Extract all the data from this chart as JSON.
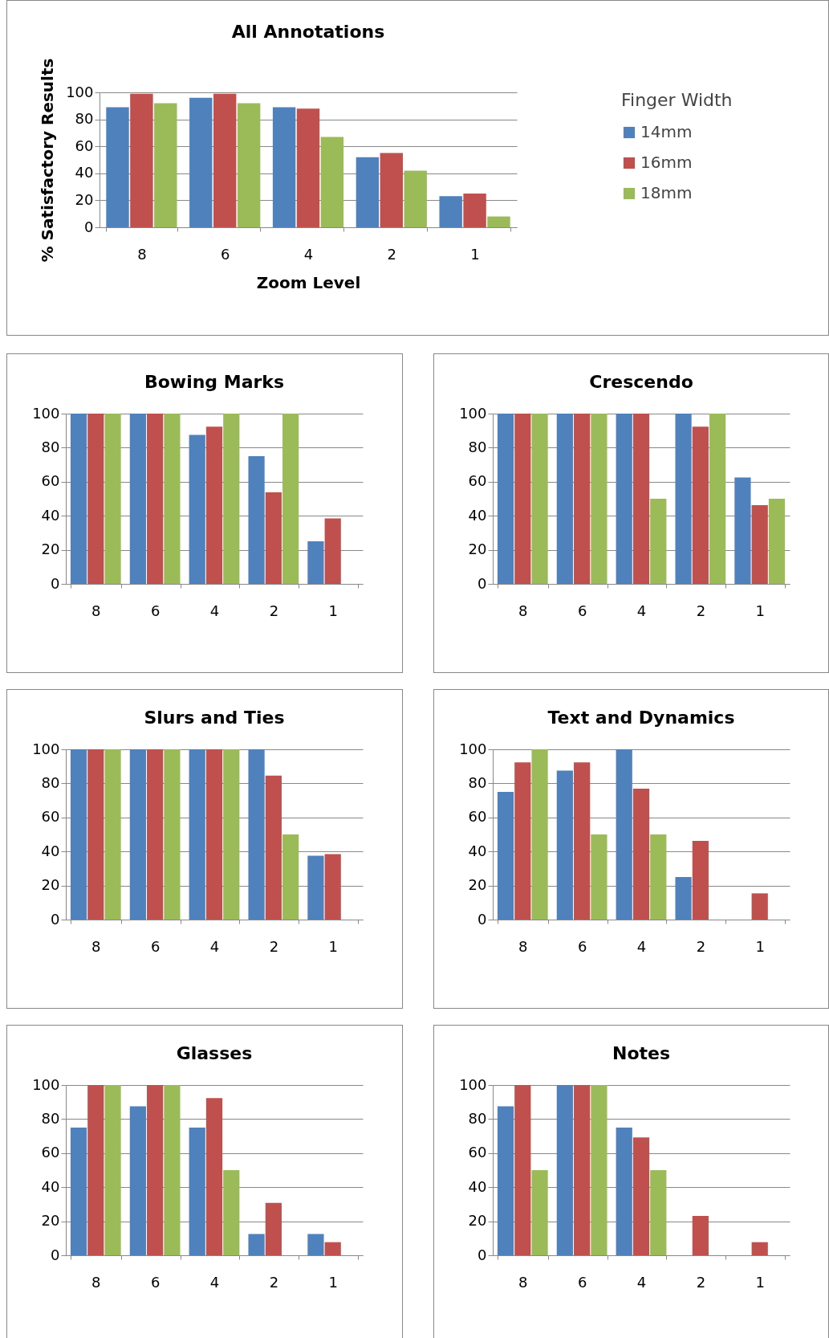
{
  "chart_data": [
    {
      "type": "bar",
      "title": "All Annotations",
      "xlabel": "Zoom Level",
      "ylabel": "% Satisfactory Results",
      "legend_title": "Finger Width",
      "legend": "right",
      "grid": "y",
      "categories": [
        "8",
        "6",
        "4",
        "2",
        "1"
      ],
      "ylim": [
        0,
        100
      ],
      "yticks": [
        0,
        20,
        40,
        60,
        80,
        100
      ],
      "series": [
        {
          "name": "14mm",
          "color": "#4f81bd",
          "values": [
            89,
            96,
            89,
            52,
            23
          ]
        },
        {
          "name": "16mm",
          "color": "#c0504d",
          "values": [
            99,
            99,
            88,
            55,
            25
          ]
        },
        {
          "name": "18mm",
          "color": "#9bbb59",
          "values": [
            92,
            92,
            67,
            42,
            8
          ]
        }
      ]
    },
    {
      "type": "bar",
      "title": "Bowing Marks",
      "grid": "y",
      "categories": [
        "8",
        "6",
        "4",
        "2",
        "1"
      ],
      "ylim": [
        0,
        100
      ],
      "yticks": [
        0,
        20,
        40,
        60,
        80,
        100
      ],
      "series": [
        {
          "color": "#4f81bd",
          "values": [
            100,
            100,
            87.5,
            75,
            25
          ]
        },
        {
          "color": "#c0504d",
          "values": [
            100,
            100,
            92.3,
            53.8,
            38.5
          ]
        },
        {
          "color": "#9bbb59",
          "values": [
            100,
            100,
            100,
            100,
            0
          ]
        }
      ]
    },
    {
      "type": "bar",
      "title": "Crescendo",
      "grid": "y",
      "categories": [
        "8",
        "6",
        "4",
        "2",
        "1"
      ],
      "ylim": [
        0,
        100
      ],
      "yticks": [
        0,
        20,
        40,
        60,
        80,
        100
      ],
      "series": [
        {
          "color": "#4f81bd",
          "values": [
            100,
            100,
            100,
            100,
            62.5
          ]
        },
        {
          "color": "#c0504d",
          "values": [
            100,
            100,
            100,
            92.3,
            46.2
          ]
        },
        {
          "color": "#9bbb59",
          "values": [
            100,
            100,
            50,
            100,
            50
          ]
        }
      ]
    },
    {
      "type": "bar",
      "title": "Slurs and Ties",
      "grid": "y",
      "categories": [
        "8",
        "6",
        "4",
        "2",
        "1"
      ],
      "ylim": [
        0,
        100
      ],
      "yticks": [
        0,
        20,
        40,
        60,
        80,
        100
      ],
      "series": [
        {
          "color": "#4f81bd",
          "values": [
            100,
            100,
            100,
            100,
            37.5
          ]
        },
        {
          "color": "#c0504d",
          "values": [
            100,
            100,
            100,
            84.6,
            38.5
          ]
        },
        {
          "color": "#9bbb59",
          "values": [
            100,
            100,
            100,
            50,
            0
          ]
        }
      ]
    },
    {
      "type": "bar",
      "title": "Text and Dynamics",
      "grid": "y",
      "categories": [
        "8",
        "6",
        "4",
        "2",
        "1"
      ],
      "ylim": [
        0,
        100
      ],
      "yticks": [
        0,
        20,
        40,
        60,
        80,
        100
      ],
      "series": [
        {
          "color": "#4f81bd",
          "values": [
            75,
            87.5,
            100,
            25,
            0
          ]
        },
        {
          "color": "#c0504d",
          "values": [
            92.3,
            92.3,
            76.9,
            46.2,
            15.4
          ]
        },
        {
          "color": "#9bbb59",
          "values": [
            100,
            50,
            50,
            0,
            0
          ]
        }
      ]
    },
    {
      "type": "bar",
      "title": "Glasses",
      "grid": "y",
      "categories": [
        "8",
        "6",
        "4",
        "2",
        "1"
      ],
      "ylim": [
        0,
        100
      ],
      "yticks": [
        0,
        20,
        40,
        60,
        80,
        100
      ],
      "series": [
        {
          "color": "#4f81bd",
          "values": [
            75,
            87.5,
            75,
            12.5,
            12.5
          ]
        },
        {
          "color": "#c0504d",
          "values": [
            100,
            100,
            92.3,
            30.8,
            7.7
          ]
        },
        {
          "color": "#9bbb59",
          "values": [
            100,
            100,
            50,
            0,
            0
          ]
        }
      ]
    },
    {
      "type": "bar",
      "title": "Notes",
      "grid": "y",
      "categories": [
        "8",
        "6",
        "4",
        "2",
        "1"
      ],
      "ylim": [
        0,
        100
      ],
      "yticks": [
        0,
        20,
        40,
        60,
        80,
        100
      ],
      "series": [
        {
          "color": "#4f81bd",
          "values": [
            87.5,
            100,
            75,
            0,
            0
          ]
        },
        {
          "color": "#c0504d",
          "values": [
            100,
            100,
            69.2,
            23.1,
            7.7
          ]
        },
        {
          "color": "#9bbb59",
          "values": [
            50,
            100,
            50,
            0,
            0
          ]
        }
      ]
    }
  ]
}
